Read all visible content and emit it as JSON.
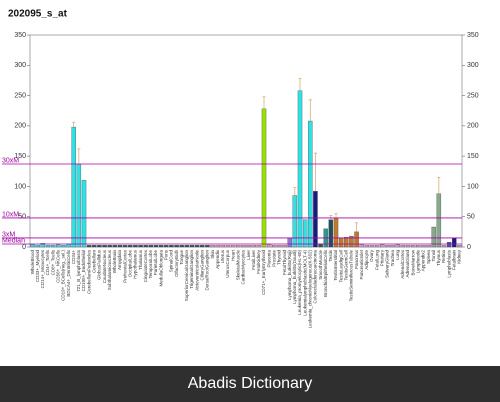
{
  "chart_data": {
    "type": "bar",
    "title": "202095_s_at",
    "categories": [
      "WholeBlood",
      "CD33+_Myeloid",
      "CD14+_Monocytes",
      "CD4+_Tcells",
      "CD8+_Tcells",
      "CD56+_NKCells",
      "CD19+_BCells(neg._sel.)",
      "BDCA4+_DentriticCells",
      "CD34+",
      "721_B_lymphoblasts",
      "CD105+_Endothelial",
      "CerebellumPeduncles",
      "Cerebellum",
      "GlobusPallidus",
      "CaudateNucleus",
      "Subthalamicnucleus",
      "WholeBrain",
      "Amygdala",
      "PrefrontalCortex",
      "OccipitalLobe",
      "Hypothalamus",
      "Thalamus",
      "CingulateCortex",
      "TemporalLobe",
      "ParietalLobe",
      "MedullaOblongata",
      "Pons",
      "SpinalCord",
      "OlfactoryBulb",
      "Tongue",
      "SuperiorCervicalGanglion",
      "TrigeminalGanglion",
      "AtrioventricularNode",
      "CiliaryGanglion",
      "DorsalRootGanglion",
      "Skin",
      "Appendix",
      "Uterus",
      "UterusCorpus",
      "Heart",
      "SkeletalMuscle",
      "CardiacMyocytes",
      "Liver",
      "FetalLiver",
      "FetalKidney",
      "CD71+_EarlyErythroid",
      "Placenta",
      "Prostate",
      "Thyroid",
      "FetalThyroid",
      "Lymphoma_burkitts(Raji)",
      "Lymphoma_burkitts(Daudi)",
      "Leukemia_promyelocytic(HL-60)",
      "Leukemialymphoblastic(MOLT-4)",
      "Leukemia_chronicMyelogenous(K-562)",
      "Colorectaladenocarcinoma",
      "SmoothMuscle",
      "BronchialEpithelialCells",
      "Testis",
      "TestisInterstitial",
      "TestisLeydigCell",
      "TestisGermCell",
      "TestisSeminiferousTubule",
      "Pancreas",
      "PancreaticIslet",
      "Adipocyte",
      "Ovary",
      "FetalLung",
      "Pituitary",
      "SalivaryGland",
      "Trachea",
      "Lung",
      "AdrenalCortex",
      "AdrenalGland",
      "BoneMarrow",
      "Lymphnode",
      "Appendix2",
      "Spleen",
      "Tonsil",
      "Thymus",
      "Retina",
      "Lymphoblasts",
      "Fetalbrain",
      "Kidney"
    ],
    "values": [
      4,
      3,
      6,
      3,
      3,
      4,
      3,
      5,
      198,
      137,
      110,
      3,
      3,
      3,
      3,
      3,
      3,
      3,
      3,
      3,
      3,
      3,
      3,
      3,
      3,
      3,
      3,
      3,
      3,
      3,
      3,
      3,
      3,
      3,
      3,
      3,
      3,
      3,
      3,
      3,
      3,
      3,
      3,
      3,
      3,
      228,
      4,
      3,
      3,
      3,
      15,
      85,
      258,
      45,
      208,
      92,
      5,
      30,
      45,
      48,
      15,
      16,
      18,
      25,
      4,
      3,
      3,
      3,
      4,
      3,
      3,
      4,
      3,
      3,
      3,
      3,
      3,
      3,
      33,
      88,
      3,
      8,
      15,
      3
    ],
    "errors": [
      null,
      null,
      null,
      null,
      null,
      null,
      null,
      null,
      8,
      25,
      null,
      null,
      null,
      null,
      null,
      null,
      null,
      null,
      null,
      null,
      null,
      null,
      null,
      null,
      null,
      null,
      null,
      null,
      null,
      null,
      null,
      null,
      null,
      null,
      null,
      null,
      null,
      null,
      null,
      null,
      null,
      null,
      null,
      null,
      null,
      20,
      null,
      null,
      null,
      null,
      null,
      13,
      20,
      null,
      35,
      63,
      null,
      null,
      7,
      7,
      null,
      null,
      null,
      15,
      null,
      null,
      null,
      null,
      null,
      null,
      null,
      null,
      null,
      null,
      null,
      null,
      null,
      null,
      null,
      27,
      null,
      null,
      null,
      null
    ],
    "colors": [
      "#33e0e0",
      "#33e0e0",
      "#33e0e0",
      "#33e0e0",
      "#33e0e0",
      "#33e0e0",
      "#33e0e0",
      "#33e0e0",
      "#33e0e0",
      "#33e0e0",
      "#33e0e0",
      "#2e5e3e",
      "#2e5e3e",
      "#2e5e3e",
      "#2e5e3e",
      "#2e5e3e",
      "#2e5e3e",
      "#2e5e3e",
      "#2e5e3e",
      "#2e5e3e",
      "#2e5e3e",
      "#2e5e3e",
      "#2e5e3e",
      "#2e5e3e",
      "#2e5e3e",
      "#2e5e3e",
      "#2e5e3e",
      "#2e5e3e",
      "#2e5e3e",
      "#2e5e3e",
      "#2e5e3e",
      "#2e5e3e",
      "#2e5e3e",
      "#2e5e3e",
      "#2e5e3e",
      "#e0a0b0",
      "#e0a0b0",
      "#e0a0b0",
      "#e0a0b0",
      "#e0a0b0",
      "#e0a0b0",
      "#e0a0b0",
      "#e0a0b0",
      "#e0a0b0",
      "#e0a0b0",
      "#99e000",
      "#e0a0b0",
      "#e0a0b0",
      "#e0a0b0",
      "#e0a0b0",
      "#8878d8",
      "#33e0e0",
      "#33e0e0",
      "#33e0e0",
      "#33e0e0",
      "#1a1a80",
      "#2e5e3e",
      "#2a9a8a",
      "#20505a",
      "#c07a28",
      "#c07a28",
      "#c07a28",
      "#c07a28",
      "#c07a28",
      "#d0a0c0",
      "#d0a0c0",
      "#d0a0c0",
      "#d0a0c0",
      "#d0a0c0",
      "#d0a0c0",
      "#d0a0c0",
      "#d0a0c0",
      "#d0a0c0",
      "#d0a0c0",
      "#d0a0c0",
      "#d0a0c0",
      "#d0a0c0",
      "#d0a0c0",
      "#88aa88",
      "#88aa88",
      "#d0a0c0",
      "#5050b0",
      "#1a1a80",
      "#d0a0c0"
    ],
    "ylim": [
      0,
      350
    ],
    "yticks": [
      0,
      50,
      100,
      150,
      200,
      250,
      300,
      350
    ],
    "reference_lines": [
      {
        "value": 137,
        "label": "30xM"
      },
      {
        "value": 48,
        "label": "10xM"
      },
      {
        "value": 15,
        "label": "3xM"
      },
      {
        "value": 5,
        "label": "Median"
      }
    ]
  },
  "footer": {
    "text": "Abadis Dictionary"
  }
}
